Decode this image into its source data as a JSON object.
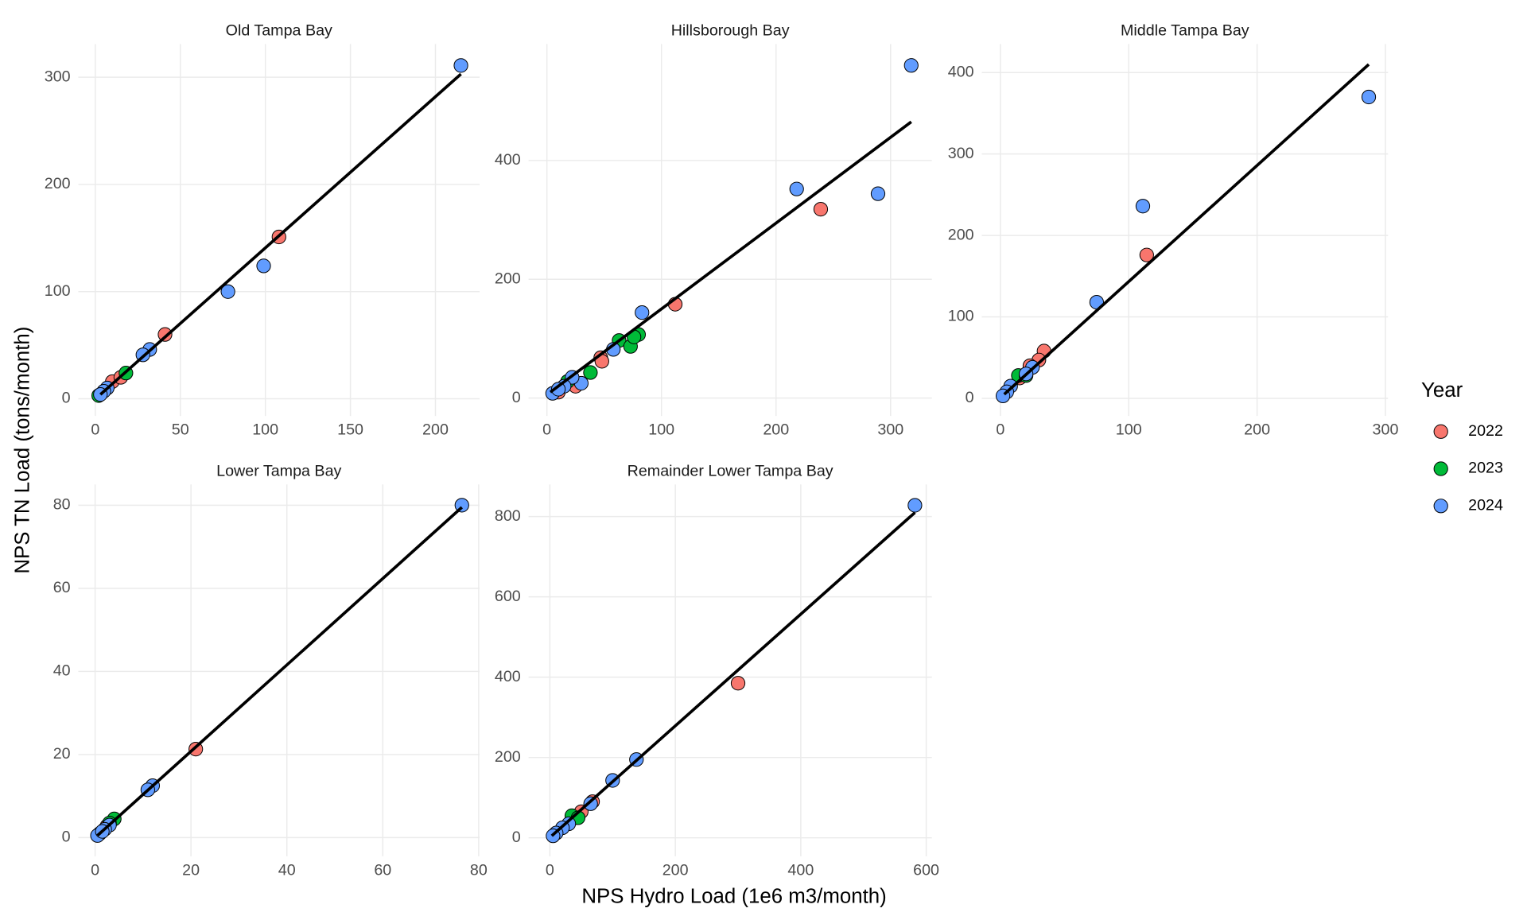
{
  "chart_data": [
    {
      "type": "scatter",
      "title": "Old Tampa Bay",
      "xlim": [
        -10,
        226
      ],
      "ylim": [
        -16,
        331
      ],
      "xticks": [
        0,
        50,
        100,
        150,
        200
      ],
      "yticks": [
        0,
        100,
        200,
        300
      ],
      "grid": true,
      "series": [
        {
          "name": "2022",
          "color": "#F8766D",
          "x": [
            108,
            41,
            10,
            15
          ],
          "values": [
            151,
            60,
            16,
            20
          ]
        },
        {
          "name": "2023",
          "color": "#00BA38",
          "x": [
            18,
            2
          ],
          "values": [
            24,
            3
          ]
        },
        {
          "name": "2024",
          "color": "#619CFF",
          "x": [
            215,
            99,
            78,
            32,
            28,
            7,
            5,
            3
          ],
          "values": [
            311,
            124,
            100,
            46,
            41,
            10,
            7,
            4
          ]
        }
      ],
      "fit_line": {
        "x": [
          3,
          215
        ],
        "y": [
          4,
          303
        ]
      }
    },
    {
      "type": "scatter",
      "title": "Hillsborough Bay",
      "xlim": [
        -16,
        336
      ],
      "ylim": [
        -30,
        596
      ],
      "xticks": [
        0,
        100,
        200,
        300
      ],
      "yticks": [
        0,
        200,
        400
      ],
      "grid": true,
      "series": [
        {
          "name": "2022",
          "color": "#F8766D",
          "x": [
            239,
            112,
            47,
            48,
            25,
            10
          ],
          "values": [
            318,
            158,
            68,
            62,
            20,
            10
          ]
        },
        {
          "name": "2023",
          "color": "#00BA38",
          "x": [
            38,
            63,
            73,
            80,
            76,
            18
          ],
          "values": [
            43,
            97,
            87,
            107,
            103,
            28
          ]
        },
        {
          "name": "2024",
          "color": "#619CFF",
          "x": [
            318,
            218,
            289,
            83,
            58,
            30,
            22,
            15,
            5,
            10
          ],
          "values": [
            560,
            352,
            344,
            144,
            82,
            25,
            35,
            20,
            8,
            15
          ]
        }
      ],
      "fit_line": {
        "x": [
          3,
          318
        ],
        "y": [
          10,
          465
        ]
      }
    },
    {
      "type": "scatter",
      "title": "Middle Tampa Bay",
      "xlim": [
        -14.5,
        302
      ],
      "ylim": [
        -21.6,
        435
      ],
      "xticks": [
        0,
        100,
        200,
        300
      ],
      "yticks": [
        0,
        100,
        200,
        300,
        400
      ],
      "grid": true,
      "series": [
        {
          "name": "2022",
          "color": "#F8766D",
          "x": [
            114,
            34,
            30,
            23,
            15
          ],
          "values": [
            176,
            58,
            47,
            40,
            25
          ]
        },
        {
          "name": "2023",
          "color": "#00BA38",
          "x": [
            14,
            20
          ],
          "values": [
            28,
            28
          ]
        },
        {
          "name": "2024",
          "color": "#619CFF",
          "x": [
            287,
            111,
            75,
            25,
            20,
            8,
            5,
            2
          ],
          "values": [
            370,
            236,
            118,
            38,
            30,
            15,
            8,
            3
          ]
        }
      ],
      "fit_line": {
        "x": [
          3,
          287
        ],
        "y": [
          5,
          410
        ]
      }
    },
    {
      "type": "scatter",
      "title": "Lower Tampa Bay",
      "xlim": [
        -3.5,
        80.2
      ],
      "ylim": [
        -4.5,
        85
      ],
      "xticks": [
        0,
        20,
        40,
        60,
        80
      ],
      "yticks": [
        0,
        20,
        40,
        60,
        80
      ],
      "grid": true,
      "series": [
        {
          "name": "2022",
          "color": "#F8766D",
          "x": [
            21,
            2.5
          ],
          "values": [
            21.3,
            2.8
          ]
        },
        {
          "name": "2023",
          "color": "#00BA38",
          "x": [
            4,
            3
          ],
          "values": [
            4.5,
            3.5
          ]
        },
        {
          "name": "2024",
          "color": "#619CFF",
          "x": [
            76.5,
            12,
            11,
            3,
            2,
            1,
            0.5,
            1.5
          ],
          "values": [
            80,
            12.5,
            11.5,
            3,
            2,
            1,
            0.5,
            1.5
          ]
        }
      ],
      "fit_line": {
        "x": [
          0.5,
          76.5
        ],
        "y": [
          0.5,
          79.5
        ]
      }
    },
    {
      "type": "scatter",
      "title": "Remainder Lower Tampa Bay",
      "xlim": [
        -34,
        609
      ],
      "ylim": [
        -46,
        880
      ],
      "xticks": [
        0,
        200,
        400,
        600
      ],
      "yticks": [
        0,
        200,
        400,
        600,
        800
      ],
      "grid": true,
      "series": [
        {
          "name": "2022",
          "color": "#F8766D",
          "x": [
            300,
            68,
            50,
            40
          ],
          "values": [
            385,
            90,
            65,
            50
          ]
        },
        {
          "name": "2023",
          "color": "#00BA38",
          "x": [
            35,
            45
          ],
          "values": [
            55,
            50
          ]
        },
        {
          "name": "2024",
          "color": "#619CFF",
          "x": [
            582,
            138,
            100,
            65,
            30,
            20,
            10,
            5
          ],
          "values": [
            828,
            195,
            143,
            85,
            35,
            25,
            12,
            5
          ]
        }
      ],
      "fit_line": {
        "x": [
          3,
          582
        ],
        "y": [
          5,
          810
        ]
      }
    }
  ],
  "x_label": "NPS Hydro Load (1e6 m3/month)",
  "y_label": "NPS TN Load (tons/month)",
  "legend": {
    "title": "Year",
    "position": "right"
  }
}
